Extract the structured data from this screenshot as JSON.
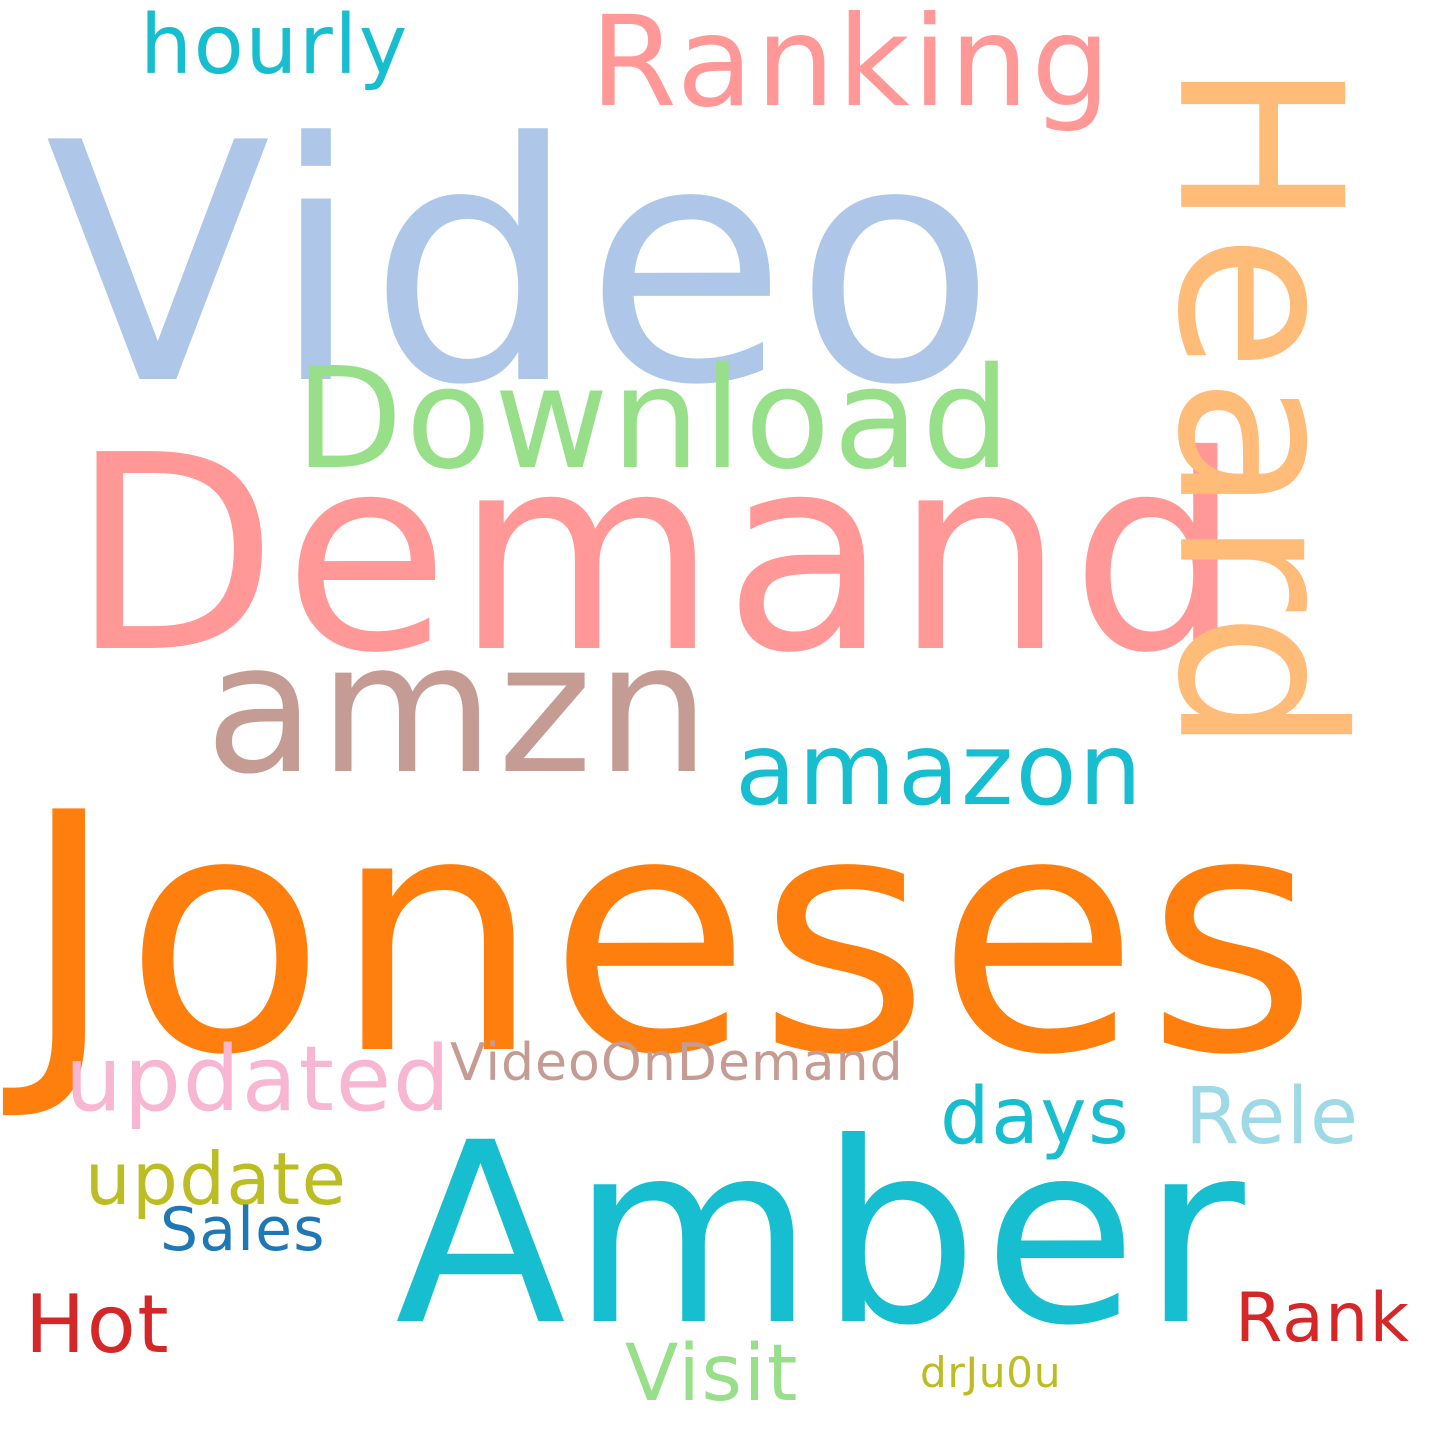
{
  "background": "#ffffff",
  "words": [
    {
      "id": "video",
      "text": "Video",
      "color": "#aec7e8"
    },
    {
      "id": "demand",
      "text": "Demand",
      "color": "#ff9896"
    },
    {
      "id": "joneses",
      "text": "Joneses",
      "color": "#ff7f0e"
    },
    {
      "id": "heard",
      "text": "Heard",
      "color": "#ffbb78"
    },
    {
      "id": "amber",
      "text": "Amber",
      "color": "#17becf"
    },
    {
      "id": "amzn",
      "text": "amzn",
      "color": "#c49c94"
    },
    {
      "id": "ranking",
      "text": "Ranking",
      "color": "#ff9896"
    },
    {
      "id": "download",
      "text": "Download",
      "color": "#98df8a"
    },
    {
      "id": "amazon",
      "text": "amazon",
      "color": "#17becf"
    },
    {
      "id": "hourly",
      "text": "hourly",
      "color": "#17becf"
    },
    {
      "id": "updated",
      "text": "updated",
      "color": "#f7b6d2"
    },
    {
      "id": "videoondemand",
      "text": "VideoOnDemand",
      "color": "#c49c94"
    },
    {
      "id": "days",
      "text": "days",
      "color": "#17becf"
    },
    {
      "id": "rele",
      "text": "Rele",
      "color": "#9edae5"
    },
    {
      "id": "update",
      "text": "update",
      "color": "#bcbd22"
    },
    {
      "id": "sales",
      "text": "Sales",
      "color": "#1f77b4"
    },
    {
      "id": "hot",
      "text": "Hot",
      "color": "#d62728"
    },
    {
      "id": "visit",
      "text": "Visit",
      "color": "#98df8a"
    },
    {
      "id": "rank",
      "text": "Rank",
      "color": "#d62728"
    },
    {
      "id": "drju0u",
      "text": "drJu0u",
      "color": "#bcbd22"
    }
  ]
}
